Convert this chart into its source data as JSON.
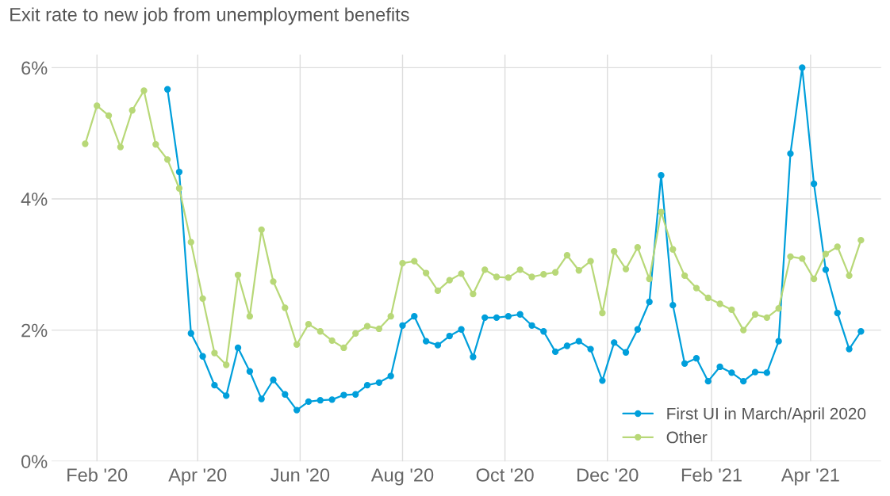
{
  "chart_data": {
    "type": "line",
    "title": "Exit rate to new job from unemployment benefits",
    "x": [
      "2020-01-25",
      "2020-02-01",
      "2020-02-08",
      "2020-02-15",
      "2020-02-22",
      "2020-02-29",
      "2020-03-07",
      "2020-03-14",
      "2020-03-21",
      "2020-03-28",
      "2020-04-04",
      "2020-04-11",
      "2020-04-18",
      "2020-04-25",
      "2020-05-02",
      "2020-05-09",
      "2020-05-16",
      "2020-05-23",
      "2020-05-30",
      "2020-06-06",
      "2020-06-13",
      "2020-06-20",
      "2020-06-27",
      "2020-07-04",
      "2020-07-11",
      "2020-07-18",
      "2020-07-25",
      "2020-08-01",
      "2020-08-08",
      "2020-08-15",
      "2020-08-22",
      "2020-08-29",
      "2020-09-05",
      "2020-09-12",
      "2020-09-19",
      "2020-09-26",
      "2020-10-03",
      "2020-10-10",
      "2020-10-17",
      "2020-10-24",
      "2020-10-31",
      "2020-11-07",
      "2020-11-14",
      "2020-11-21",
      "2020-11-28",
      "2020-12-05",
      "2020-12-12",
      "2020-12-19",
      "2020-12-26",
      "2021-01-02",
      "2021-01-09",
      "2021-01-16",
      "2021-01-23",
      "2021-01-30",
      "2021-02-06",
      "2021-02-13",
      "2021-02-20",
      "2021-02-27",
      "2021-03-06",
      "2021-03-13",
      "2021-03-20",
      "2021-03-27",
      "2021-04-03",
      "2021-04-10",
      "2021-04-17",
      "2021-04-24",
      "2021-05-01"
    ],
    "series": [
      {
        "name": "First UI in March/April 2020",
        "color": "#009fdb",
        "values": [
          null,
          null,
          null,
          null,
          null,
          null,
          null,
          5.67,
          4.41,
          1.95,
          1.6,
          1.16,
          1.0,
          1.73,
          1.37,
          0.95,
          1.24,
          1.02,
          0.78,
          0.91,
          0.93,
          0.94,
          1.01,
          1.02,
          1.16,
          1.2,
          1.3,
          2.07,
          2.21,
          1.83,
          1.77,
          1.91,
          2.01,
          1.59,
          2.19,
          2.19,
          2.21,
          2.24,
          2.07,
          1.98,
          1.67,
          1.76,
          1.83,
          1.71,
          1.23,
          1.81,
          1.66,
          2.01,
          2.43,
          4.36,
          2.38,
          1.49,
          1.57,
          1.22,
          1.44,
          1.35,
          1.22,
          1.36,
          1.35,
          1.83,
          4.69,
          6.0,
          4.23,
          2.92,
          2.26,
          1.71,
          1.98
        ]
      },
      {
        "name": "Other",
        "color": "#b8d878",
        "values": [
          4.84,
          5.42,
          5.27,
          4.79,
          5.35,
          5.65,
          4.83,
          4.6,
          4.16,
          3.34,
          2.48,
          1.65,
          1.47,
          2.84,
          2.21,
          3.53,
          2.74,
          2.34,
          1.78,
          2.09,
          1.98,
          1.84,
          1.73,
          1.95,
          2.06,
          2.02,
          2.21,
          3.02,
          3.05,
          2.87,
          2.6,
          2.76,
          2.86,
          2.55,
          2.92,
          2.81,
          2.8,
          2.92,
          2.81,
          2.85,
          2.88,
          3.14,
          2.91,
          3.05,
          2.26,
          3.2,
          2.93,
          3.26,
          2.78,
          3.8,
          3.23,
          2.83,
          2.64,
          2.49,
          2.4,
          2.31,
          2.0,
          2.24,
          2.19,
          2.33,
          3.12,
          3.09,
          2.78,
          3.16,
          3.27,
          2.83,
          3.37
        ]
      }
    ],
    "xlim": [
      "2020-01-05",
      "2021-05-13"
    ],
    "xticks": [
      {
        "value": "2020-02-01",
        "label": "Feb '20"
      },
      {
        "value": "2020-04-01",
        "label": "Apr '20"
      },
      {
        "value": "2020-06-01",
        "label": "Jun '20"
      },
      {
        "value": "2020-08-01",
        "label": "Aug '20"
      },
      {
        "value": "2020-10-01",
        "label": "Oct '20"
      },
      {
        "value": "2020-12-01",
        "label": "Dec '20"
      },
      {
        "value": "2021-02-01",
        "label": "Feb '21"
      },
      {
        "value": "2021-04-01",
        "label": "Apr '21"
      }
    ],
    "ylim": [
      0,
      6.2
    ],
    "yticks": [
      {
        "value": 0,
        "label": "0%"
      },
      {
        "value": 2,
        "label": "2%"
      },
      {
        "value": 4,
        "label": "4%"
      },
      {
        "value": 6,
        "label": "6%"
      }
    ],
    "grid": true,
    "legend": "bottom right",
    "marker": "circle",
    "line_style": "solid"
  }
}
